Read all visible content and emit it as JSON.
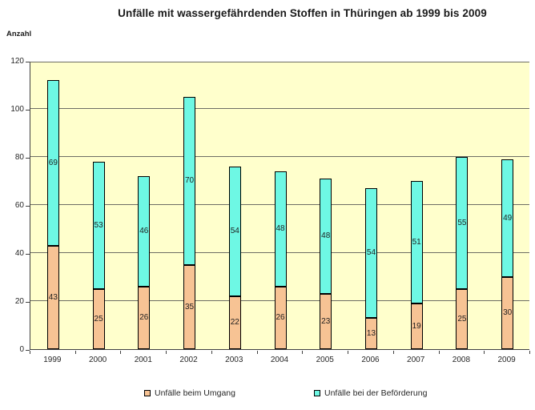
{
  "title": "Unfälle mit wassergefährdenden Stoffen in Thüringen ab 1999 bis 2009",
  "y_axis_title": "Anzahl",
  "chart_data": {
    "type": "bar",
    "stacked": true,
    "title": "Unfälle mit wassergefährdenden Stoffen in Thüringen ab 1999 bis 2009",
    "ylabel": "Anzahl",
    "xlabel": "",
    "categories": [
      "1999",
      "2000",
      "2001",
      "2002",
      "2003",
      "2004",
      "2005",
      "2006",
      "2007",
      "2008",
      "2009"
    ],
    "series": [
      {
        "name": "Unfälle beim Umgang",
        "color": "#F7C394",
        "values": [
          43,
          25,
          26,
          35,
          22,
          26,
          23,
          13,
          19,
          25,
          30
        ]
      },
      {
        "name": "Unfälle bei der Beförderung",
        "color": "#6EF8E4",
        "values": [
          69,
          53,
          46,
          70,
          54,
          48,
          48,
          54,
          51,
          55,
          49
        ]
      }
    ],
    "totals": [
      112,
      78,
      72,
      105,
      76,
      74,
      71,
      67,
      70,
      80,
      79
    ],
    "ylim": [
      0,
      120
    ],
    "yticks": [
      0,
      20,
      40,
      60,
      80,
      100,
      120
    ],
    "grid": true,
    "data_labels": true,
    "legend_position": "bottom",
    "plot_background": "#FFFFCC",
    "bar_border_color": "#000000",
    "gridline_color": "#6e6e64"
  }
}
